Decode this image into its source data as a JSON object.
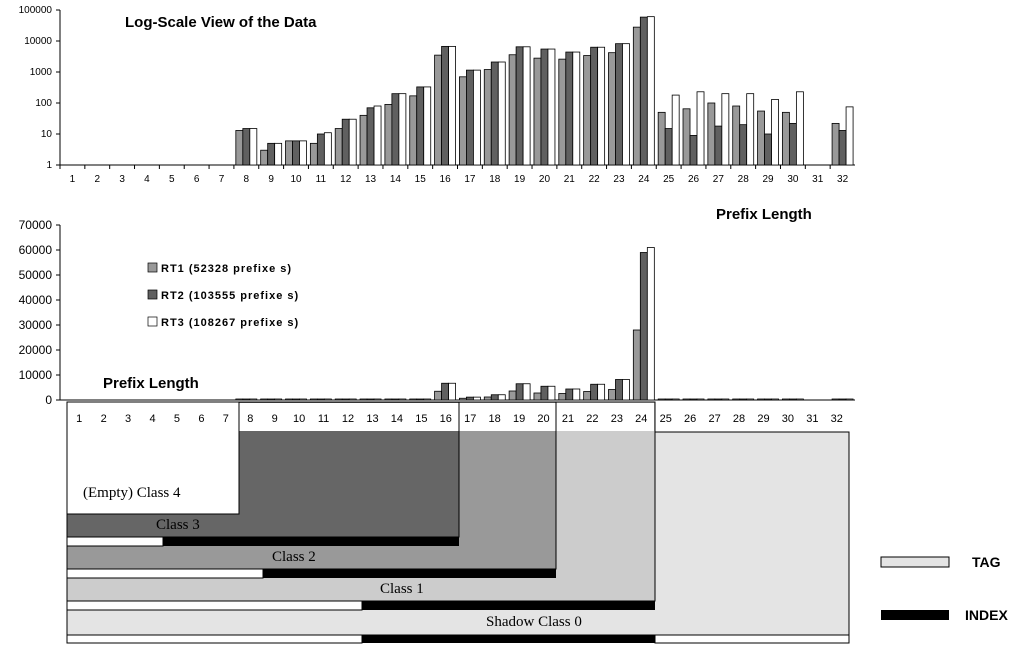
{
  "chart_data": [
    {
      "type": "bar",
      "title": "Log-Scale View of the Data",
      "log_scale": true,
      "ylim": [
        1,
        100000
      ],
      "y_tick_labels": [
        "1",
        "10",
        "100",
        "1000",
        "10000",
        "100000"
      ],
      "categories": [
        "1",
        "2",
        "3",
        "4",
        "5",
        "6",
        "7",
        "8",
        "9",
        "10",
        "11",
        "12",
        "13",
        "14",
        "15",
        "16",
        "17",
        "18",
        "19",
        "20",
        "21",
        "22",
        "23",
        "24",
        "25",
        "26",
        "27",
        "28",
        "29",
        "30",
        "31",
        "32"
      ],
      "series": [
        {
          "name": "RT1 (52328 prefixes)",
          "color": "#999999",
          "values": [
            0,
            0,
            0,
            0,
            0,
            0,
            0,
            13,
            3,
            6,
            5,
            15,
            40,
            90,
            170,
            3500,
            700,
            1200,
            3600,
            2800,
            2600,
            3400,
            4200,
            28000,
            50,
            65,
            100,
            80,
            55,
            50,
            0,
            22
          ]
        },
        {
          "name": "RT2 (103555 prefixes)",
          "color": "#606060",
          "values": [
            0,
            0,
            0,
            0,
            0,
            0,
            0,
            15,
            5,
            6,
            10,
            30,
            70,
            200,
            330,
            6700,
            1150,
            2100,
            6500,
            5500,
            4400,
            6300,
            8200,
            59000,
            15,
            9,
            18,
            20,
            10,
            22,
            0,
            13
          ]
        },
        {
          "name": "RT3 (108267 prefixes)",
          "color": "#ffffff",
          "values": [
            0,
            0,
            0,
            0,
            0,
            0,
            0,
            15,
            5,
            6,
            11,
            30,
            80,
            200,
            330,
            6700,
            1150,
            2100,
            6500,
            5500,
            4400,
            6300,
            8200,
            61000,
            180,
            230,
            200,
            200,
            130,
            230,
            0,
            75
          ]
        }
      ]
    },
    {
      "type": "bar",
      "xlabel": "Prefix Length",
      "ylim": [
        0,
        70000
      ],
      "y_tick_labels": [
        "0",
        "10000",
        "20000",
        "30000",
        "40000",
        "50000",
        "60000",
        "70000"
      ],
      "categories": [
        "1",
        "2",
        "3",
        "4",
        "5",
        "6",
        "7",
        "8",
        "9",
        "10",
        "11",
        "12",
        "13",
        "14",
        "15",
        "16",
        "17",
        "18",
        "19",
        "20",
        "21",
        "22",
        "23",
        "24",
        "25",
        "26",
        "27",
        "28",
        "29",
        "30",
        "31",
        "32"
      ],
      "legend": [
        "RT1 (52328 prefixes)",
        "RT2 (103555 prefixes)",
        "RT3 (108267 prefixes)"
      ],
      "legend_labels_display": [
        "RT1 (52328 prefixe s)",
        "RT2 (103555 prefixe s)",
        "RT3 (108267 prefixe s)"
      ],
      "legend_placement": "top-left",
      "series": [
        {
          "name": "RT1 (52328 prefixes)",
          "color": "#999999",
          "values": [
            0,
            0,
            0,
            0,
            0,
            0,
            0,
            13,
            3,
            6,
            5,
            15,
            40,
            90,
            170,
            3500,
            700,
            1200,
            3600,
            2800,
            2600,
            3400,
            4200,
            28000,
            50,
            65,
            100,
            80,
            55,
            50,
            0,
            22
          ]
        },
        {
          "name": "RT2 (103555 prefixes)",
          "color": "#606060",
          "values": [
            0,
            0,
            0,
            0,
            0,
            0,
            0,
            15,
            5,
            6,
            10,
            30,
            70,
            200,
            330,
            6700,
            1150,
            2100,
            6500,
            5500,
            4400,
            6300,
            8200,
            59000,
            15,
            9,
            18,
            20,
            10,
            22,
            0,
            13
          ]
        },
        {
          "name": "RT3 (108267 prefixes)",
          "color": "#ffffff",
          "values": [
            0,
            0,
            0,
            0,
            0,
            0,
            0,
            15,
            5,
            6,
            11,
            30,
            80,
            200,
            330,
            6700,
            1150,
            2100,
            6500,
            5500,
            4400,
            6300,
            8200,
            61000,
            180,
            230,
            200,
            200,
            130,
            230,
            0,
            75
          ]
        }
      ]
    }
  ],
  "labels": {
    "top_xlabel": "Prefix Length",
    "mid_xlabel": "Prefix Length"
  },
  "diagram": {
    "classes": [
      {
        "label": "(Empty) Class 4",
        "color": "#ffffff"
      },
      {
        "label": "Class 3",
        "color": "#666666"
      },
      {
        "label": "Class 2",
        "color": "#999999"
      },
      {
        "label": "Class 1",
        "color": "#cccccc"
      },
      {
        "label": "Shadow Class 0",
        "color": "#e4e4e4"
      }
    ],
    "key": {
      "tag": "TAG",
      "index": "INDEX"
    }
  }
}
